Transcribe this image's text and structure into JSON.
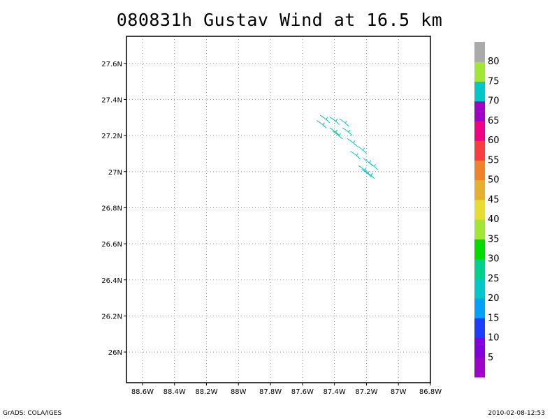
{
  "title": "080831h Gustav Wind at 16.5 km",
  "footer": {
    "left": "GrADS: COLA/IGES",
    "right": "2010-02-08-12:53"
  },
  "map": {
    "lon_range": [
      -88.7,
      -86.8
    ],
    "lat_range": [
      25.83,
      27.75
    ],
    "grid": true,
    "lon_ticks": [
      {
        "value": -88.6,
        "label": "88.6W"
      },
      {
        "value": -88.4,
        "label": "88.4W"
      },
      {
        "value": -88.2,
        "label": "88.2W"
      },
      {
        "value": -88.0,
        "label": "88W"
      },
      {
        "value": -87.8,
        "label": "87.8W"
      },
      {
        "value": -87.6,
        "label": "87.6W"
      },
      {
        "value": -87.4,
        "label": "87.4W"
      },
      {
        "value": -87.2,
        "label": "87.2W"
      },
      {
        "value": -87.0,
        "label": "87W"
      },
      {
        "value": -86.8,
        "label": "86.8W"
      }
    ],
    "lat_ticks": [
      {
        "value": 27.6,
        "label": "27.6N"
      },
      {
        "value": 27.4,
        "label": "27.4N"
      },
      {
        "value": 27.2,
        "label": "27.2N"
      },
      {
        "value": 27.0,
        "label": "27N"
      },
      {
        "value": 26.8,
        "label": "26.8N"
      },
      {
        "value": 26.6,
        "label": "26.6N"
      },
      {
        "value": 26.4,
        "label": "26.4N"
      },
      {
        "value": 26.2,
        "label": "26.2N"
      },
      {
        "value": 26.0,
        "label": "26N"
      }
    ],
    "wind_barbs": [
      {
        "lon": -87.46,
        "lat": 27.29,
        "speed": 27,
        "color": "#00c8a0"
      },
      {
        "lon": -87.4,
        "lat": 27.28,
        "speed": 27,
        "color": "#00c8a0"
      },
      {
        "lon": -87.34,
        "lat": 27.27,
        "speed": 25,
        "color": "#00c8c8"
      },
      {
        "lon": -87.48,
        "lat": 27.26,
        "speed": 28,
        "color": "#00c8a0"
      },
      {
        "lon": -87.32,
        "lat": 27.22,
        "speed": 25,
        "color": "#00c8c8"
      },
      {
        "lon": -87.4,
        "lat": 27.22,
        "speed": 27,
        "color": "#00c8a0"
      },
      {
        "lon": -87.38,
        "lat": 27.2,
        "speed": 26,
        "color": "#00c8a0"
      },
      {
        "lon": -87.29,
        "lat": 27.16,
        "speed": 24,
        "color": "#00c8c8"
      },
      {
        "lon": -87.23,
        "lat": 27.12,
        "speed": 24,
        "color": "#00c8c8"
      },
      {
        "lon": -87.27,
        "lat": 27.09,
        "speed": 24,
        "color": "#00c8c8"
      },
      {
        "lon": -87.19,
        "lat": 27.05,
        "speed": 23,
        "color": "#00c8c8"
      },
      {
        "lon": -87.16,
        "lat": 27.03,
        "speed": 23,
        "color": "#00c8c8"
      },
      {
        "lon": -87.22,
        "lat": 27.01,
        "speed": 23,
        "color": "#00c8c8"
      },
      {
        "lon": -87.2,
        "lat": 26.99,
        "speed": 23,
        "color": "#00c8c8"
      },
      {
        "lon": -87.18,
        "lat": 26.98,
        "speed": 23,
        "color": "#00c8c8"
      }
    ]
  },
  "colorbar": {
    "labels": [
      "5",
      "10",
      "15",
      "20",
      "25",
      "30",
      "35",
      "40",
      "45",
      "50",
      "55",
      "60",
      "65",
      "70",
      "75",
      "80"
    ],
    "colors": [
      "#a000c8",
      "#8200dc",
      "#1e3cff",
      "#00a0ff",
      "#00c8c8",
      "#00d28c",
      "#00dc00",
      "#a0e632",
      "#e6dc32",
      "#e6af2d",
      "#f08228",
      "#fa3c3c",
      "#f00082",
      "#a000c8",
      "#00c8c8",
      "#a0e632",
      "#aaaaaa"
    ]
  }
}
